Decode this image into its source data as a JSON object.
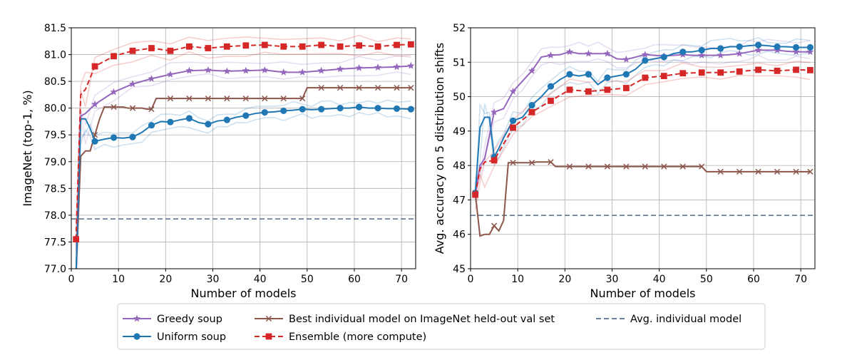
{
  "colors": {
    "greedy": "#9467bd",
    "uniform": "#1f77b4",
    "best": "#8c564b",
    "ensemble": "#d62728",
    "avg": "#6b7f99",
    "grid": "#b0b0b0"
  },
  "legend": {
    "greedy": "Greedy soup",
    "uniform": "Uniform soup",
    "best": "Best individual model on ImageNet held-out val set",
    "ensemble": "Ensemble (more compute)",
    "avg": "Avg. individual model"
  },
  "chart_data": [
    {
      "type": "line",
      "xlabel": "Number of models",
      "ylabel": "ImageNet (top-1, %)",
      "xlim": [
        0,
        73
      ],
      "ylim": [
        77.0,
        81.5
      ],
      "xticks": [
        "0",
        "10",
        "20",
        "30",
        "40",
        "50",
        "60",
        "70"
      ],
      "yticks": [
        "77.0",
        "77.5",
        "78.0",
        "78.5",
        "79.0",
        "79.5",
        "80.0",
        "80.5",
        "81.0",
        "81.5"
      ],
      "grid": true,
      "avg_individual": 77.93,
      "series": [
        {
          "key": "greedy",
          "name": "Greedy soup",
          "marker": "star",
          "x": [
            1,
            2,
            3,
            5,
            9,
            13,
            17,
            21,
            25,
            29,
            33,
            37,
            41,
            45,
            49,
            53,
            57,
            61,
            65,
            69,
            72
          ],
          "y": [
            76.9,
            79.85,
            79.9,
            80.07,
            80.3,
            80.45,
            80.55,
            80.63,
            80.7,
            80.71,
            80.69,
            80.7,
            80.71,
            80.67,
            80.67,
            80.7,
            80.73,
            80.75,
            80.76,
            80.77,
            80.79
          ],
          "mx": [
            1,
            5,
            9,
            13,
            17,
            21,
            25,
            29,
            33,
            37,
            41,
            45,
            49,
            53,
            57,
            61,
            65,
            69,
            72
          ]
        },
        {
          "key": "uniform",
          "name": "Uniform soup",
          "marker": "circle",
          "x": [
            1,
            2,
            3,
            4,
            5,
            7,
            9,
            11,
            13,
            15,
            17,
            19,
            21,
            23,
            25,
            27,
            29,
            31,
            33,
            35,
            37,
            39,
            41,
            43,
            45,
            47,
            49,
            51,
            53,
            55,
            57,
            59,
            61,
            63,
            65,
            67,
            69,
            72
          ],
          "y": [
            76.9,
            79.8,
            79.8,
            79.62,
            79.38,
            79.42,
            79.45,
            79.44,
            79.46,
            79.55,
            79.68,
            79.75,
            79.74,
            79.78,
            79.81,
            79.73,
            79.7,
            79.76,
            79.78,
            79.83,
            79.86,
            79.9,
            79.92,
            79.93,
            79.95,
            79.96,
            79.98,
            79.97,
            79.98,
            79.99,
            80.0,
            80.0,
            80.02,
            80.0,
            80.0,
            79.99,
            79.99,
            79.98
          ],
          "mx": [
            1,
            5,
            9,
            13,
            17,
            21,
            25,
            29,
            33,
            37,
            41,
            45,
            49,
            53,
            57,
            61,
            65,
            69,
            72
          ]
        },
        {
          "key": "best",
          "name": "Best individual model on ImageNet held-out val set",
          "marker": "x",
          "x": [
            1,
            2,
            3,
            4,
            5,
            6,
            7,
            8,
            9,
            10,
            11,
            12,
            13,
            14,
            15,
            16,
            17,
            18,
            19,
            20,
            21,
            22,
            23,
            24,
            25,
            26,
            27,
            28,
            29,
            30,
            31,
            32,
            33,
            34,
            35,
            36,
            37,
            38,
            39,
            40,
            41,
            42,
            43,
            44,
            45,
            46,
            47,
            48,
            49,
            50,
            51,
            52,
            53,
            54,
            55,
            56,
            57,
            58,
            59,
            60,
            61,
            62,
            63,
            64,
            65,
            66,
            67,
            68,
            69,
            70,
            71,
            72
          ],
          "y": [
            76.9,
            79.1,
            79.2,
            79.2,
            79.5,
            79.8,
            80.02,
            80.02,
            80.02,
            80.02,
            80.02,
            80.0,
            80.0,
            80.0,
            80.0,
            79.98,
            79.98,
            80.18,
            80.18,
            80.18,
            80.18,
            80.18,
            80.18,
            80.18,
            80.18,
            80.18,
            80.18,
            80.18,
            80.18,
            80.18,
            80.18,
            80.18,
            80.18,
            80.18,
            80.18,
            80.18,
            80.18,
            80.18,
            80.18,
            80.18,
            80.18,
            80.18,
            80.18,
            80.18,
            80.18,
            80.18,
            80.18,
            80.18,
            80.18,
            80.38,
            80.38,
            80.38,
            80.38,
            80.38,
            80.38,
            80.38,
            80.38,
            80.38,
            80.38,
            80.38,
            80.38,
            80.38,
            80.38,
            80.38,
            80.38,
            80.38,
            80.38,
            80.38,
            80.38,
            80.38,
            80.38,
            80.38
          ],
          "mx": [
            1,
            5,
            9,
            13,
            17,
            21,
            25,
            29,
            33,
            37,
            41,
            45,
            49,
            53,
            57,
            61,
            65,
            69,
            72
          ]
        },
        {
          "key": "ensemble",
          "name": "Ensemble (more compute)",
          "marker": "square",
          "x": [
            1,
            2,
            3,
            5,
            9,
            13,
            17,
            21,
            25,
            29,
            33,
            37,
            41,
            45,
            49,
            53,
            57,
            61,
            65,
            69,
            72
          ],
          "y": [
            77.55,
            80.25,
            80.35,
            80.78,
            80.97,
            81.07,
            81.12,
            81.07,
            81.15,
            81.12,
            81.15,
            81.17,
            81.18,
            81.15,
            81.15,
            81.18,
            81.15,
            81.17,
            81.15,
            81.18,
            81.19
          ],
          "mx": [
            1,
            5,
            9,
            13,
            17,
            21,
            25,
            29,
            33,
            37,
            41,
            45,
            49,
            53,
            57,
            61,
            65,
            69,
            72
          ]
        }
      ]
    },
    {
      "type": "line",
      "xlabel": "Number of models",
      "ylabel": "Avg. accuracy on 5 distribution shifts",
      "xlim": [
        0,
        73
      ],
      "ylim": [
        45,
        52
      ],
      "xticks": [
        "0",
        "10",
        "20",
        "30",
        "40",
        "50",
        "60",
        "70"
      ],
      "yticks": [
        "45",
        "46",
        "47",
        "48",
        "49",
        "50",
        "51",
        "52"
      ],
      "grid": true,
      "avg_individual": 46.55,
      "series": [
        {
          "key": "greedy",
          "name": "Greedy soup",
          "marker": "star",
          "x": [
            1,
            2,
            3,
            5,
            7,
            9,
            11,
            13,
            15,
            17,
            19,
            21,
            23,
            25,
            27,
            29,
            31,
            33,
            35,
            37,
            39,
            41,
            43,
            45,
            47,
            49,
            51,
            53,
            55,
            57,
            59,
            61,
            63,
            65,
            67,
            69,
            72
          ],
          "y": [
            47.2,
            48.0,
            48.2,
            49.55,
            49.65,
            50.15,
            50.45,
            50.75,
            51.15,
            51.2,
            51.22,
            51.3,
            51.25,
            51.25,
            51.25,
            51.25,
            51.1,
            51.08,
            51.15,
            51.22,
            51.2,
            51.18,
            51.2,
            51.22,
            51.2,
            51.2,
            51.2,
            51.2,
            51.22,
            51.25,
            51.3,
            51.35,
            51.35,
            51.35,
            51.32,
            51.3,
            51.3
          ],
          "mx": [
            1,
            5,
            9,
            13,
            17,
            21,
            25,
            29,
            33,
            37,
            41,
            45,
            49,
            53,
            57,
            61,
            65,
            69,
            72
          ]
        },
        {
          "key": "uniform",
          "name": "Uniform soup",
          "marker": "circle",
          "x": [
            1,
            2,
            3,
            4,
            5,
            6,
            7,
            9,
            11,
            13,
            15,
            17,
            19,
            21,
            23,
            25,
            27,
            29,
            31,
            33,
            35,
            37,
            39,
            41,
            43,
            45,
            47,
            49,
            51,
            53,
            55,
            57,
            59,
            61,
            63,
            65,
            67,
            69,
            72
          ],
          "y": [
            47.2,
            49.1,
            49.4,
            49.4,
            48.25,
            48.5,
            48.8,
            49.3,
            49.4,
            49.75,
            50.0,
            50.3,
            50.5,
            50.65,
            50.6,
            50.65,
            50.35,
            50.55,
            50.6,
            50.65,
            50.8,
            51.05,
            51.1,
            51.15,
            51.25,
            51.3,
            51.3,
            51.35,
            51.4,
            51.4,
            51.45,
            51.45,
            51.48,
            51.5,
            51.48,
            51.45,
            51.45,
            51.43,
            51.43
          ],
          "mx": [
            1,
            5,
            9,
            13,
            17,
            21,
            25,
            29,
            33,
            37,
            41,
            45,
            49,
            53,
            57,
            61,
            65,
            69,
            72
          ]
        },
        {
          "key": "best",
          "name": "Best individual model on ImageNet held-out val set",
          "marker": "x",
          "x": [
            1,
            2,
            3,
            4,
            5,
            6,
            7,
            8,
            9,
            10,
            11,
            12,
            13,
            14,
            15,
            16,
            17,
            18,
            19,
            20,
            21,
            22,
            23,
            24,
            25,
            26,
            27,
            28,
            29,
            30,
            31,
            32,
            33,
            34,
            35,
            36,
            37,
            38,
            39,
            40,
            41,
            42,
            43,
            44,
            45,
            46,
            47,
            48,
            49,
            50,
            51,
            52,
            53,
            54,
            55,
            56,
            57,
            58,
            59,
            60,
            61,
            62,
            63,
            64,
            65,
            66,
            67,
            68,
            69,
            70,
            71,
            72
          ],
          "y": [
            47.2,
            45.95,
            46.0,
            46.0,
            46.25,
            46.1,
            46.4,
            48.08,
            48.08,
            48.08,
            48.08,
            48.08,
            48.08,
            48.1,
            48.1,
            48.1,
            48.1,
            47.97,
            47.97,
            47.97,
            47.97,
            47.97,
            47.97,
            47.97,
            47.97,
            47.97,
            47.97,
            47.97,
            47.97,
            47.97,
            47.97,
            47.97,
            47.97,
            47.97,
            47.97,
            47.97,
            47.97,
            47.97,
            47.97,
            47.97,
            47.97,
            47.97,
            47.97,
            47.97,
            47.97,
            47.97,
            47.97,
            47.97,
            47.97,
            47.82,
            47.82,
            47.82,
            47.82,
            47.82,
            47.82,
            47.82,
            47.82,
            47.82,
            47.82,
            47.82,
            47.82,
            47.82,
            47.82,
            47.82,
            47.82,
            47.82,
            47.82,
            47.82,
            47.82,
            47.82,
            47.82,
            47.82
          ],
          "mx": [
            1,
            5,
            9,
            13,
            17,
            21,
            25,
            29,
            33,
            37,
            41,
            45,
            49,
            53,
            57,
            61,
            65,
            69,
            72
          ]
        },
        {
          "key": "ensemble",
          "name": "Ensemble (more compute)",
          "marker": "square",
          "x": [
            1,
            2,
            3,
            5,
            9,
            13,
            17,
            21,
            25,
            29,
            33,
            37,
            41,
            45,
            49,
            53,
            57,
            61,
            65,
            69,
            72
          ],
          "y": [
            47.15,
            47.9,
            48.1,
            48.15,
            49.1,
            49.55,
            49.88,
            50.2,
            50.15,
            50.2,
            50.25,
            50.55,
            50.6,
            50.68,
            50.7,
            50.7,
            50.73,
            50.78,
            50.75,
            50.78,
            50.77
          ],
          "mx": [
            1,
            5,
            9,
            13,
            17,
            21,
            25,
            29,
            33,
            37,
            41,
            45,
            49,
            53,
            57,
            61,
            65,
            69,
            72
          ]
        }
      ]
    }
  ]
}
